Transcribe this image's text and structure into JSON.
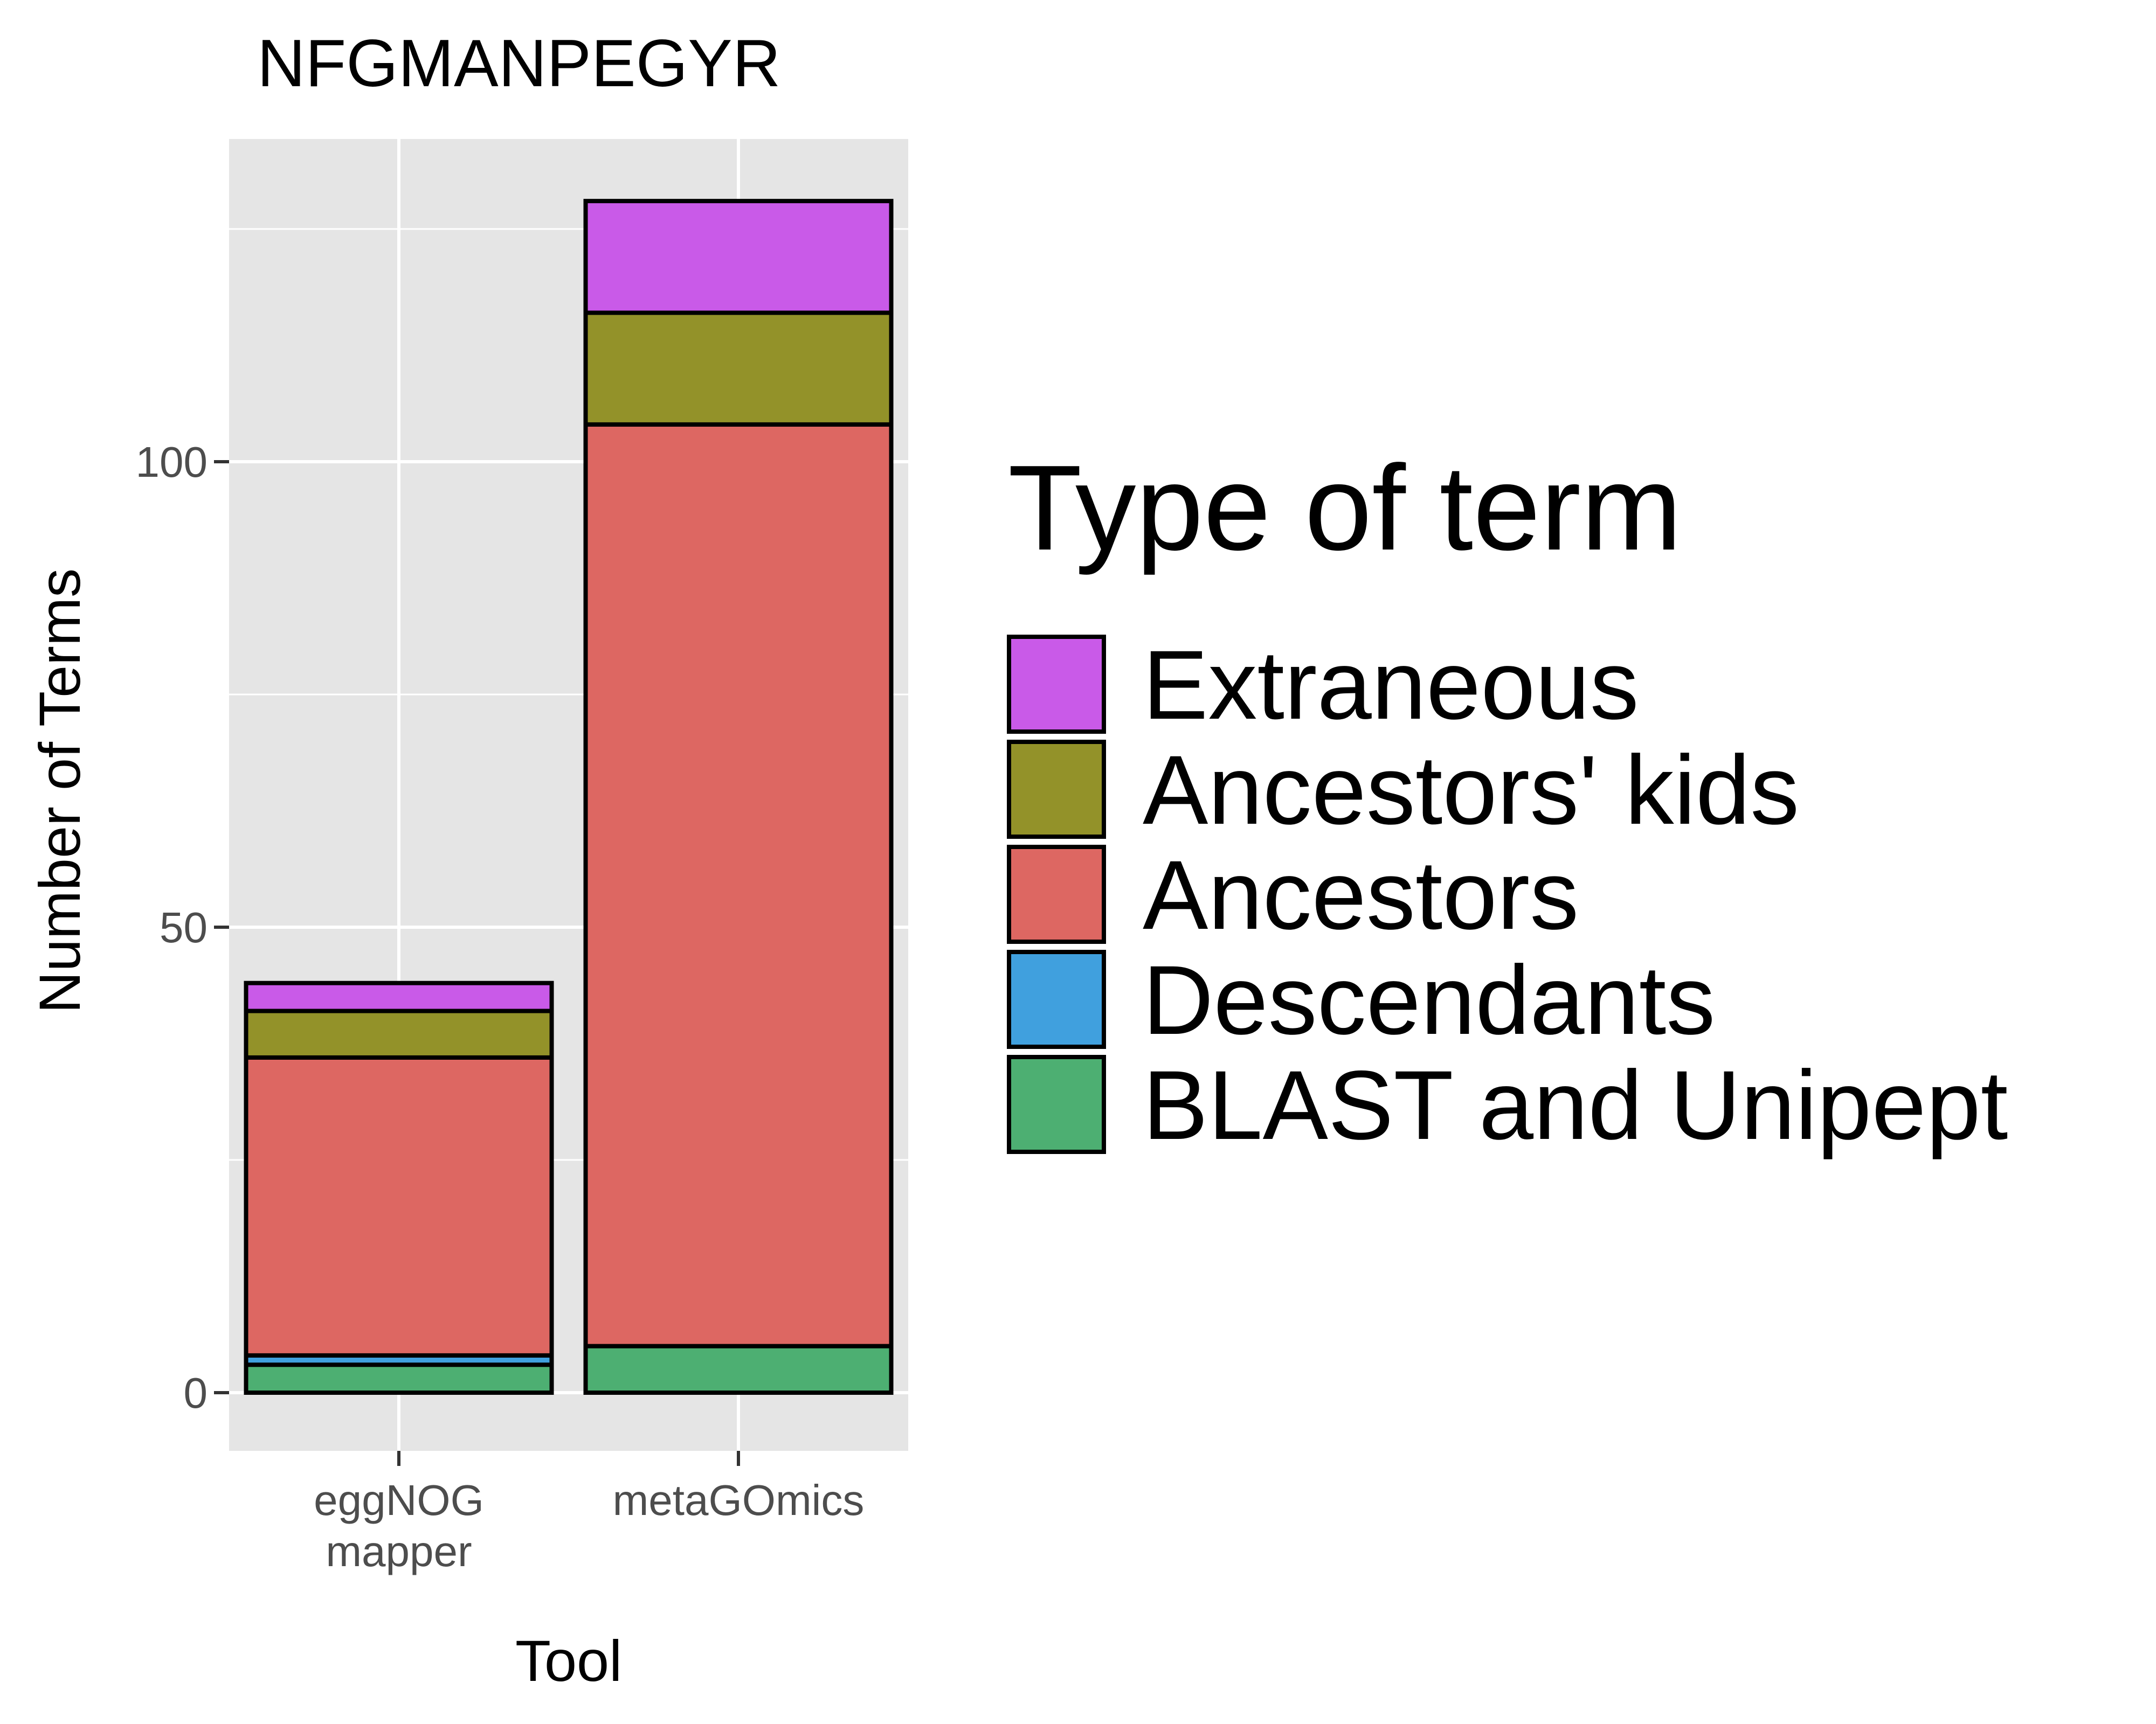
{
  "chart_data": {
    "type": "bar",
    "stacked": true,
    "title": "NFGMANPEGYR",
    "xlabel": "Tool",
    "ylabel": "Number of Terms",
    "categories": [
      "eggNOG mapper",
      "metaGOmics"
    ],
    "category_lines": [
      [
        "eggNOG",
        "mapper"
      ],
      [
        "metaGOmics"
      ]
    ],
    "ylim": [
      -6,
      135
    ],
    "yticks": [
      0,
      50,
      100
    ],
    "grid": true,
    "legend": {
      "title": "Type of term",
      "position": "right",
      "order": [
        "Extraneous",
        "Ancestors' kids",
        "Ancestors",
        "Descendants",
        "BLAST and Unipept"
      ]
    },
    "series": [
      {
        "name": "BLAST and Unipept",
        "color": "#4daf72",
        "values": [
          3,
          5
        ]
      },
      {
        "name": "Descendants",
        "color": "#40a0de",
        "values": [
          1,
          0
        ]
      },
      {
        "name": "Ancestors",
        "color": "#dd6762",
        "values": [
          32,
          99
        ]
      },
      {
        "name": "Ancestors' kids",
        "color": "#939229",
        "values": [
          5,
          12
        ]
      },
      {
        "name": "Extraneous",
        "color": "#c95ae8",
        "values": [
          3,
          12
        ]
      }
    ]
  }
}
